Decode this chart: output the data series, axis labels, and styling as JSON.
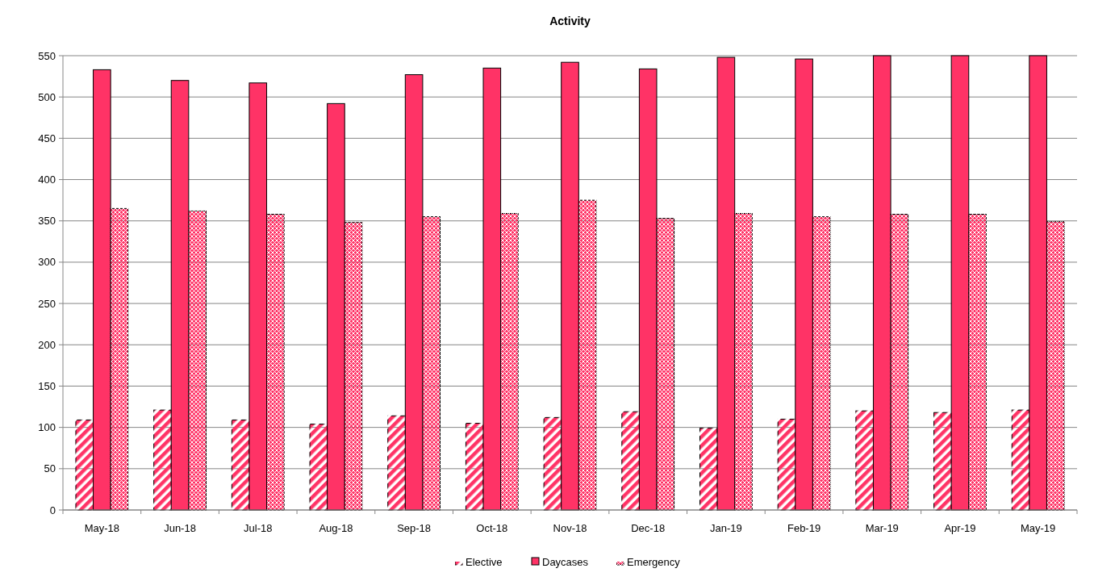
{
  "chart_data": {
    "type": "bar",
    "title": "Activity",
    "categories": [
      "May-18",
      "Jun-18",
      "Jul-18",
      "Aug-18",
      "Sep-18",
      "Oct-18",
      "Nov-18",
      "Dec-18",
      "Jan-19",
      "Feb-19",
      "Mar-19",
      "Apr-19",
      "May-19"
    ],
    "series": [
      {
        "name": "Elective",
        "color": "#ff3366",
        "values": [
          109,
          121,
          109,
          104,
          114,
          105,
          112,
          119,
          99,
          110,
          120,
          118,
          121
        ]
      },
      {
        "name": "Daycases",
        "color": "#ff3366",
        "values": [
          533,
          520,
          517,
          492,
          527,
          535,
          542,
          534,
          548,
          546,
          550,
          550,
          550
        ]
      },
      {
        "name": "Emergency",
        "color": "#ff3366",
        "values": [
          365,
          362,
          358,
          348,
          355,
          359,
          375,
          353,
          359,
          355,
          358,
          358,
          349
        ]
      }
    ],
    "ylim": [
      0,
      550
    ],
    "yticks": [
      0,
      50,
      100,
      150,
      200,
      250,
      300,
      350,
      400,
      450,
      500,
      550
    ],
    "grid": "y",
    "legend": "bottom"
  }
}
